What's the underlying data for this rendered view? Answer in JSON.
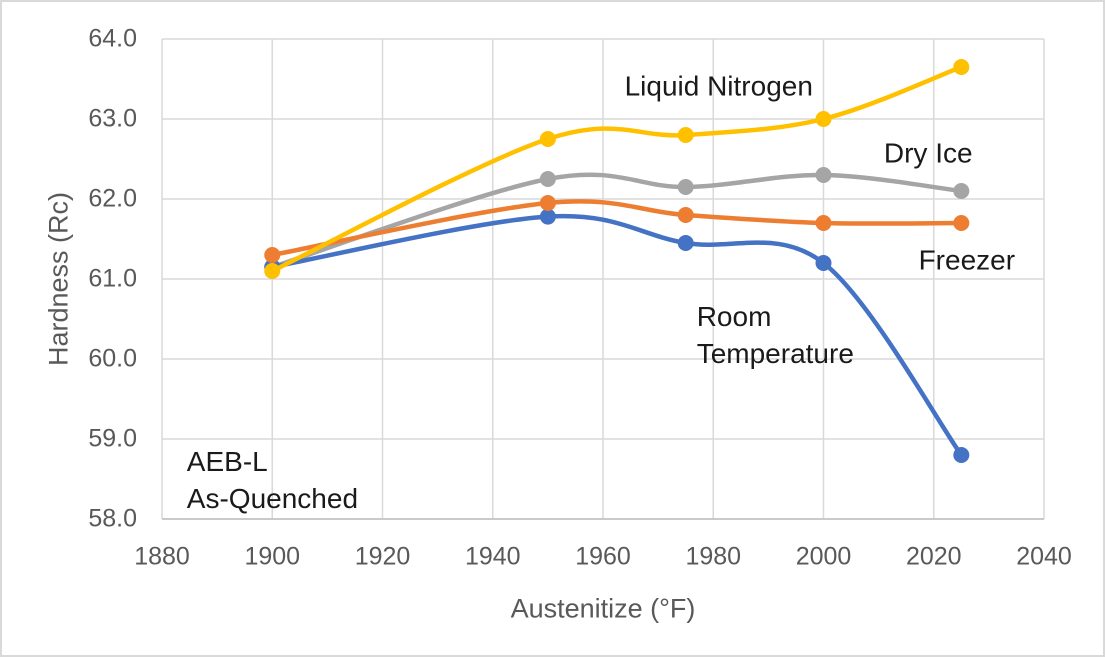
{
  "chart_data": {
    "type": "line",
    "xlabel": "Austenitize (°F)",
    "ylabel": "Hardness (Rc)",
    "xlim": [
      1880,
      2040
    ],
    "ylim": [
      58.0,
      64.0
    ],
    "x_ticks": [
      "1880",
      "1900",
      "1920",
      "1940",
      "1960",
      "1980",
      "2000",
      "2020",
      "2040"
    ],
    "y_ticks": [
      "58.0",
      "59.0",
      "60.0",
      "61.0",
      "62.0",
      "63.0",
      "64.0"
    ],
    "grid": true,
    "legend": "none (direct in-plot labels)",
    "line_style": "smoothed with round markers",
    "x": [
      1900,
      1950,
      1975,
      2000,
      2025
    ],
    "series": [
      {
        "name": "Dry Ice",
        "color": "#A5A5A5",
        "values": [
          61.15,
          62.25,
          62.15,
          62.3,
          62.1
        ]
      },
      {
        "name": "Room Temperature",
        "color": "#4472C4",
        "values": [
          61.15,
          61.78,
          61.45,
          61.2,
          58.8
        ]
      },
      {
        "name": "Freezer",
        "color": "#ED7D31",
        "values": [
          61.3,
          61.95,
          61.8,
          61.7,
          61.7
        ]
      },
      {
        "name": "Liquid Nitrogen",
        "color": "#FFC000",
        "values": [
          61.1,
          62.75,
          62.8,
          63.0,
          63.65
        ]
      }
    ],
    "annotations": [
      {
        "text": "Liquid Nitrogen",
        "x": 1981.0,
        "y": 63.4,
        "align": "center"
      },
      {
        "text": "Dry Ice",
        "x": 2019.0,
        "y": 62.56,
        "align": "center"
      },
      {
        "text": "Freezer",
        "x": 2026.0,
        "y": 61.22,
        "align": "center"
      },
      {
        "text": "Room\nTemperature",
        "x": 1977.0,
        "y": 60.29,
        "align": "left"
      },
      {
        "text": "AEB-L\nAs-Quenched",
        "x": 1884.5,
        "y": 58.48,
        "align": "left"
      }
    ],
    "colors": {
      "gridline": "#D9D9D9",
      "axis_line": "#BFBFBF",
      "tick_text": "#595959",
      "annotation_text": "#1A1A1A",
      "background": "#FFFFFF",
      "border": "#D9D9D9"
    }
  }
}
